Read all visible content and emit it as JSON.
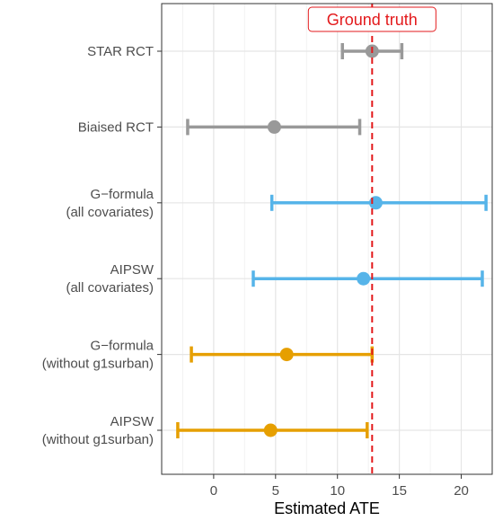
{
  "chart_data": {
    "type": "errorbar",
    "title": "",
    "xlabel": "Estimated ATE",
    "ylabel": "",
    "xlim": [
      -4.2,
      22.5
    ],
    "xticks": [
      0,
      5,
      10,
      15,
      20
    ],
    "grid": true,
    "reference_line": {
      "x": 12.8,
      "label": "Ground truth",
      "color": "#e31a1c"
    },
    "series": [
      {
        "category": [
          "STAR RCT"
        ],
        "estimate": 12.8,
        "lower": 10.4,
        "upper": 15.2,
        "color": "#999999"
      },
      {
        "category": [
          "Biaised RCT"
        ],
        "estimate": 4.9,
        "lower": -2.1,
        "upper": 11.8,
        "color": "#999999"
      },
      {
        "category": [
          "G−formula",
          "(all covariates)"
        ],
        "estimate": 13.1,
        "lower": 4.7,
        "upper": 22.0,
        "color": "#56b4e9"
      },
      {
        "category": [
          "AIPSW",
          "(all covariates)"
        ],
        "estimate": 12.1,
        "lower": 3.2,
        "upper": 21.7,
        "color": "#56b4e9"
      },
      {
        "category": [
          "G−formula",
          "(without g1surban)"
        ],
        "estimate": 5.9,
        "lower": -1.8,
        "upper": 12.8,
        "color": "#e69f00"
      },
      {
        "category": [
          "AIPSW",
          "(without g1surban)"
        ],
        "estimate": 4.6,
        "lower": -2.9,
        "upper": 12.4,
        "color": "#e69f00"
      }
    ]
  }
}
